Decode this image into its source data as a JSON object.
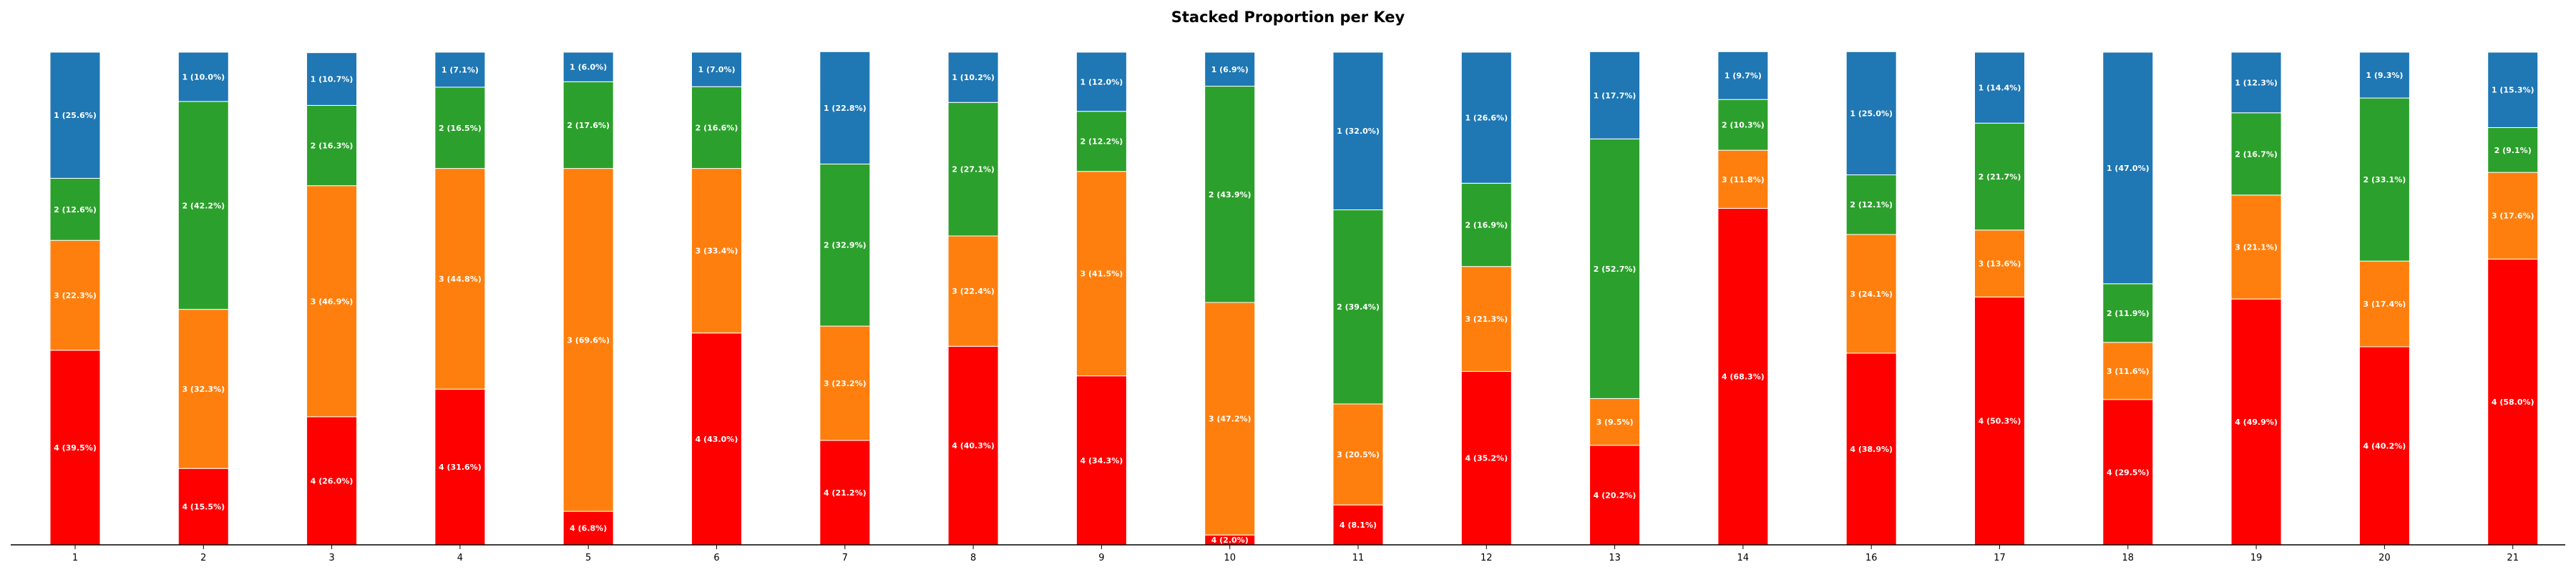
{
  "chart_data": {
    "type": "bar",
    "stacked": true,
    "normalized": true,
    "title": "Stacked Proportion per Key",
    "xlabel": "",
    "ylabel": "",
    "ylim": [
      0,
      100
    ],
    "grid": false,
    "legend": "none",
    "categories": [
      "1",
      "2",
      "3",
      "4",
      "5",
      "6",
      "7",
      "8",
      "9",
      "10",
      "11",
      "12",
      "13",
      "14",
      "16",
      "17",
      "18",
      "19",
      "20",
      "21"
    ],
    "series": [
      {
        "key": "4",
        "color": "#ff0000",
        "values": [
          39.5,
          15.5,
          26.0,
          31.6,
          6.8,
          43.0,
          21.2,
          40.3,
          34.3,
          2.0,
          8.1,
          35.2,
          20.2,
          68.3,
          38.9,
          50.3,
          29.5,
          49.9,
          40.2,
          58.0
        ]
      },
      {
        "key": "3",
        "color": "#ff7f0e",
        "values": [
          22.3,
          32.3,
          46.9,
          44.8,
          69.6,
          33.4,
          23.2,
          22.4,
          41.5,
          47.2,
          20.5,
          21.3,
          9.5,
          11.8,
          24.1,
          13.6,
          11.6,
          21.1,
          17.4,
          17.6
        ]
      },
      {
        "key": "2",
        "color": "#2ca02c",
        "values": [
          12.6,
          42.2,
          16.3,
          16.5,
          17.6,
          16.6,
          32.9,
          27.1,
          12.2,
          43.9,
          39.4,
          16.9,
          52.7,
          10.3,
          12.1,
          21.7,
          11.9,
          16.7,
          33.1,
          9.1
        ]
      },
      {
        "key": "1",
        "color": "#1f77b4",
        "values": [
          25.6,
          10.0,
          10.7,
          7.1,
          6.0,
          7.0,
          22.8,
          10.2,
          12.0,
          6.9,
          32.0,
          26.6,
          17.7,
          9.7,
          25.0,
          14.4,
          47.0,
          12.3,
          9.3,
          15.3
        ]
      }
    ]
  }
}
